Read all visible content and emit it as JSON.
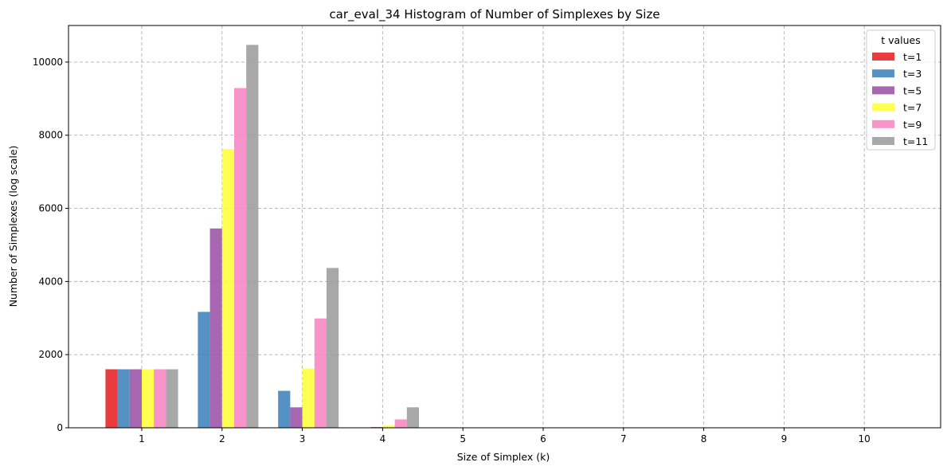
{
  "chart_data": {
    "type": "bar",
    "title": "car_eval_34 Histogram of Number of Simplexes by Size",
    "xlabel": "Size of Simplex (k)",
    "ylabel": "Number of Simplexes (log scale)",
    "categories": [
      "1",
      "2",
      "3",
      "4",
      "5",
      "6",
      "7",
      "8",
      "9",
      "10"
    ],
    "ylim": [
      0,
      11000
    ],
    "yticks": [
      "0",
      "2000",
      "4000",
      "6000",
      "8000",
      "10000"
    ],
    "grid": true,
    "legend": {
      "title": "t values",
      "placement": "top-right"
    },
    "series": [
      {
        "name": "t=1",
        "color": "#e41a1c",
        "values": [
          1600,
          0,
          0,
          0,
          0,
          0,
          0,
          0,
          0,
          0
        ]
      },
      {
        "name": "t=3",
        "color": "#377eb8",
        "values": [
          1600,
          3170,
          1010,
          5,
          0,
          0,
          0,
          0,
          0,
          0
        ]
      },
      {
        "name": "t=5",
        "color": "#984ea3",
        "values": [
          1600,
          5450,
          560,
          20,
          0,
          0,
          0,
          0,
          0,
          0
        ]
      },
      {
        "name": "t=7",
        "color": "#ffff33",
        "values": [
          1600,
          7620,
          1620,
          60,
          0,
          0,
          0,
          0,
          0,
          0
        ]
      },
      {
        "name": "t=9",
        "color": "#f781bf",
        "values": [
          1600,
          9290,
          2990,
          230,
          0,
          0,
          0,
          0,
          0,
          0
        ]
      },
      {
        "name": "t=11",
        "color": "#999999",
        "values": [
          1600,
          10470,
          4370,
          560,
          0,
          0,
          0,
          0,
          0,
          0
        ]
      }
    ]
  }
}
